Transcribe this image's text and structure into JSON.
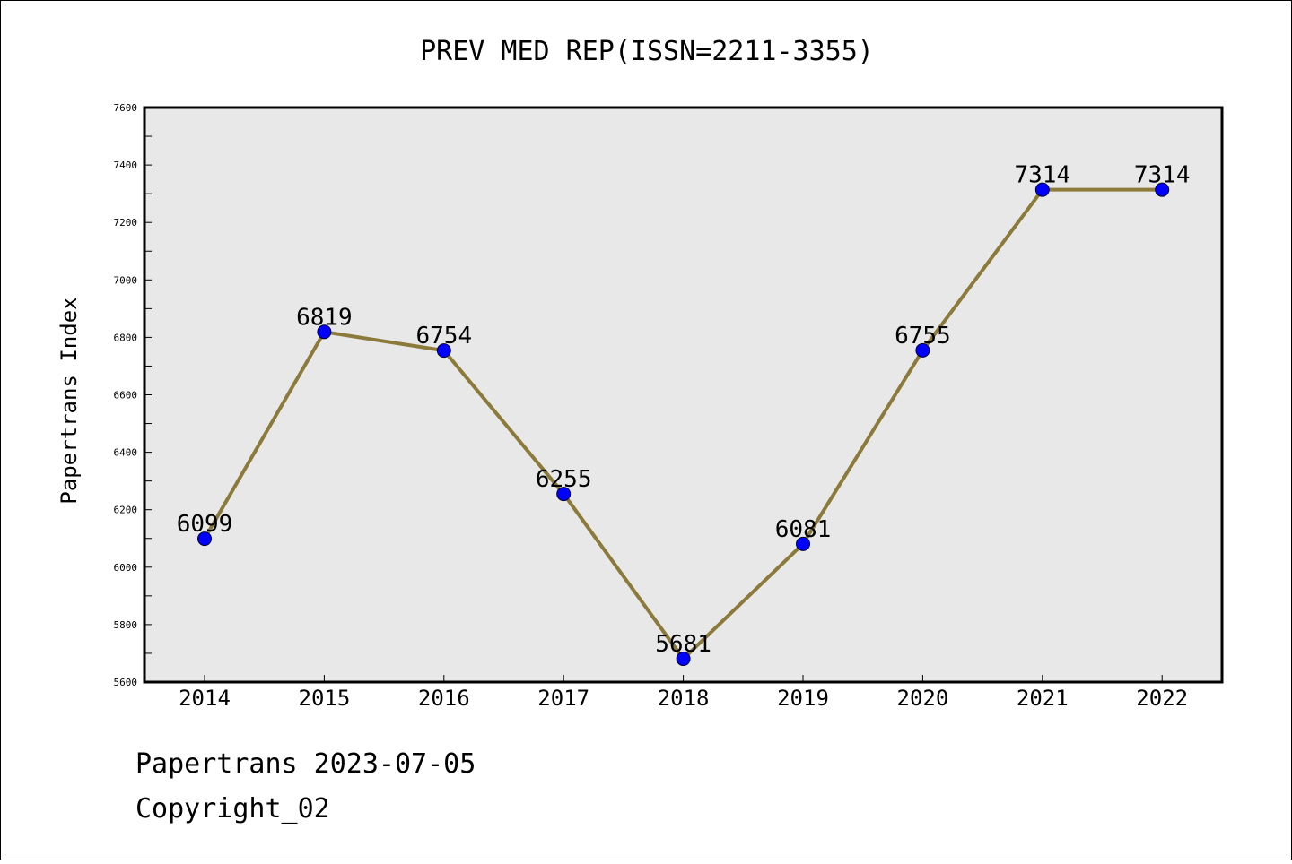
{
  "chart_data": {
    "type": "line",
    "title": "PREV MED REP(ISSN=2211-3355)",
    "xlabel": "",
    "ylabel": "Papertrans Index",
    "categories": [
      "2014",
      "2015",
      "2016",
      "2017",
      "2018",
      "2019",
      "2020",
      "2021",
      "2022"
    ],
    "series": [
      {
        "values": [
          6099,
          6819,
          6754,
          6255,
          5681,
          6081,
          6755,
          7314,
          7314
        ]
      }
    ],
    "ylim": [
      5600,
      7600
    ],
    "yticks": [
      5600,
      5800,
      6000,
      6200,
      6400,
      6600,
      6800,
      7000,
      7200,
      7400,
      7600
    ],
    "grid": false,
    "legend": "none",
    "data_labels": true,
    "colors": {
      "line": "#8c7a3a",
      "marker": "#0000ff",
      "plot_background": "#e8e8e8"
    }
  },
  "footer": {
    "line1": "Papertrans 2023-07-05",
    "line2": "Copyright_02"
  }
}
